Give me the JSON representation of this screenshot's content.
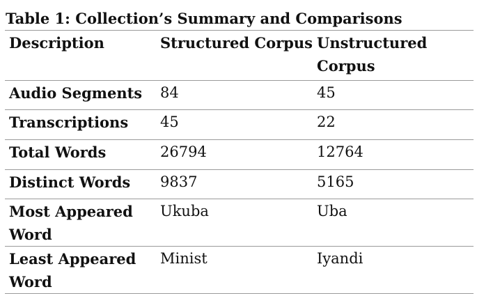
{
  "caption": "Table 1: Collection’s Summary and Comparisons",
  "table": {
    "headers": [
      "Description",
      "Structured Corpus",
      "Unstructured Corpus"
    ],
    "rows": [
      {
        "label": "Audio Segments",
        "structured": "84",
        "unstructured": "45"
      },
      {
        "label": "Transcriptions",
        "structured": "45",
        "unstructured": "22"
      },
      {
        "label": "Total Words",
        "structured": "26794",
        "unstructured": "12764"
      },
      {
        "label": "Distinct Words",
        "structured": "9837",
        "unstructured": "5165"
      },
      {
        "label": "Most Appeared Word",
        "structured": "Ukuba",
        "unstructured": "Uba"
      },
      {
        "label": "Least Appeared Word",
        "structured": "Minist",
        "unstructured": "Iyandi"
      }
    ]
  }
}
